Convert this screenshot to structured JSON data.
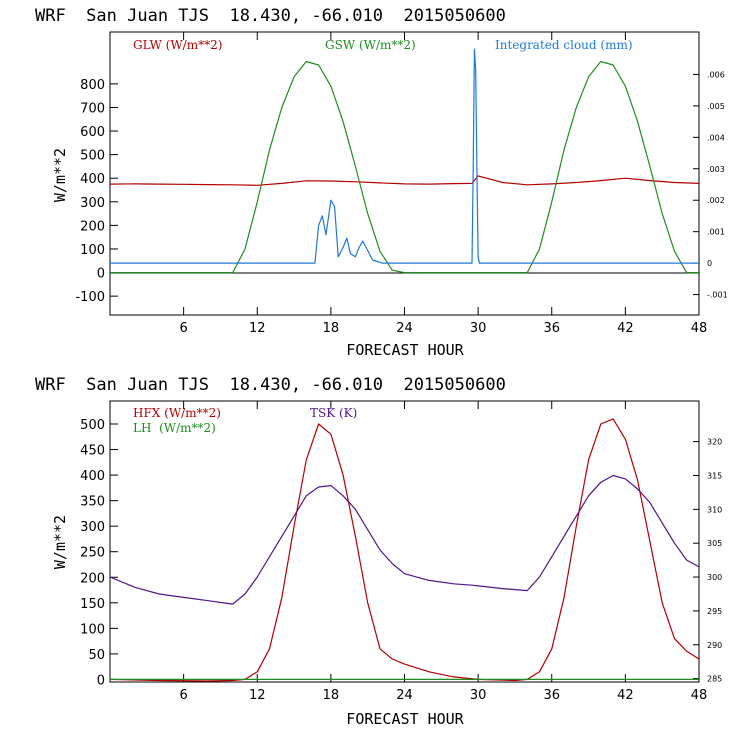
{
  "chart_data": [
    {
      "type": "line",
      "title": "WRF  San Juan TJS  18.430, -66.010  2015050600",
      "xlabel": "FORECAST HOUR",
      "ylabel": "W/m**2",
      "xlim": [
        0,
        48
      ],
      "ylim": [
        -180,
        1020
      ],
      "xticks": [
        "6",
        "12",
        "18",
        "24",
        "30",
        "36",
        "42",
        "48"
      ],
      "yticks": [
        "-100",
        "0",
        "100",
        "200",
        "300",
        "400",
        "500",
        "600",
        "700",
        "800"
      ],
      "y2lim": [
        -0.00165,
        0.00735
      ],
      "y2ticks": [
        "-.001",
        "0",
        ".001",
        ".002",
        ".003",
        ".004",
        ".005",
        ".006"
      ],
      "legend": [
        {
          "label": "GLW (W/m**2)",
          "color": "#b40000"
        },
        {
          "label": "GSW (W/m**2)",
          "color": "#1e8c1e"
        },
        {
          "label": "Integrated cloud (mm)",
          "color": "#1e78dc"
        }
      ],
      "series": [
        {
          "name": "GLW",
          "axis": "left",
          "color": "#b40000",
          "x": [
            0,
            2,
            4,
            6,
            8,
            10,
            12,
            14,
            16,
            18,
            20,
            22,
            24,
            26,
            28,
            29.5,
            30,
            32,
            34,
            36,
            38,
            40,
            42,
            44,
            46,
            48
          ],
          "y": [
            375,
            376,
            375,
            374,
            373,
            372,
            370,
            378,
            389,
            388,
            385,
            380,
            376,
            375,
            377,
            378,
            410,
            382,
            372,
            376,
            382,
            390,
            400,
            390,
            382,
            378
          ]
        },
        {
          "name": "GSW",
          "axis": "left",
          "color": "#1e8c1e",
          "x": [
            0,
            9,
            10,
            11,
            12,
            13,
            14,
            15,
            16,
            17,
            18,
            19,
            20,
            21,
            22,
            23,
            24,
            33,
            34,
            35,
            36,
            37,
            38,
            39,
            40,
            41,
            42,
            43,
            44,
            45,
            46,
            47,
            48
          ],
          "y": [
            0,
            0,
            0,
            100,
            300,
            520,
            700,
            830,
            895,
            880,
            790,
            640,
            450,
            250,
            90,
            10,
            0,
            0,
            0,
            100,
            300,
            520,
            700,
            830,
            895,
            880,
            790,
            640,
            450,
            250,
            90,
            0,
            0
          ]
        },
        {
          "name": "Integrated cloud",
          "axis": "right",
          "color": "#1e78dc",
          "x": [
            0,
            16.7,
            17,
            17.3,
            17.6,
            18,
            18.3,
            18.6,
            19,
            19.3,
            19.6,
            20,
            20.3,
            20.6,
            21,
            21.4,
            21.8,
            22.2,
            22.6,
            23,
            29.5,
            29.6,
            29.7,
            29.8,
            29.9,
            30,
            30.1,
            48
          ],
          "y": [
            0,
            0,
            0.0012,
            0.0015,
            0.0009,
            0.002,
            0.0018,
            0.0002,
            0.0005,
            0.0008,
            0.0003,
            0.0002,
            0.0005,
            0.0007,
            0.0004,
            0.0001,
            5e-05,
            0,
            0,
            0,
            0,
            0.003,
            0.0068,
            0.0061,
            0.003,
            0.0002,
            0,
            0
          ]
        }
      ]
    },
    {
      "type": "line",
      "title": "WRF  San Juan TJS  18.430, -66.010  2015050600",
      "xlabel": "FORECAST HOUR",
      "ylabel": "W/m**2",
      "xlim": [
        0,
        48
      ],
      "ylim": [
        -5,
        545
      ],
      "xticks": [
        "6",
        "12",
        "18",
        "24",
        "30",
        "36",
        "42",
        "48"
      ],
      "yticks": [
        "0",
        "50",
        "100",
        "150",
        "200",
        "250",
        "300",
        "350",
        "400",
        "450",
        "500"
      ],
      "y2lim": [
        284.5,
        326
      ],
      "y2ticks": [
        "285",
        "290",
        "295",
        "300",
        "305",
        "310",
        "315",
        "320"
      ],
      "legend": [
        {
          "label": "HFX (W/m**2)",
          "color": "#b40000"
        },
        {
          "label": "LH  (W/m**2)",
          "color": "#1e8c1e"
        },
        {
          "label": "TSK (K)",
          "color": "#50148c"
        }
      ],
      "series": [
        {
          "name": "HFX",
          "axis": "left",
          "color": "#b40000",
          "x": [
            0,
            4,
            8,
            10,
            11,
            12,
            13,
            14,
            15,
            16,
            17,
            18,
            19,
            20,
            21,
            22,
            23,
            24,
            26,
            28,
            30,
            33,
            34,
            35,
            36,
            37,
            38,
            39,
            40,
            41,
            42,
            43,
            44,
            45,
            46,
            47,
            48
          ],
          "y": [
            0,
            -2,
            -3,
            -2,
            0,
            15,
            60,
            160,
            300,
            430,
            500,
            480,
            400,
            280,
            150,
            60,
            40,
            30,
            15,
            5,
            0,
            -2,
            0,
            15,
            60,
            160,
            300,
            430,
            500,
            510,
            470,
            390,
            270,
            150,
            80,
            55,
            40
          ]
        },
        {
          "name": "LH",
          "axis": "left",
          "color": "#1e8c1e",
          "x": [
            0,
            48
          ],
          "y": [
            0,
            0
          ]
        },
        {
          "name": "TSK",
          "axis": "right",
          "color": "#50148c",
          "x": [
            0,
            2,
            4,
            6,
            8,
            10,
            11,
            12,
            13,
            14,
            15,
            16,
            17,
            18,
            19,
            20,
            21,
            22,
            23,
            24,
            26,
            28,
            29.5,
            30,
            32,
            34,
            35,
            36,
            37,
            38,
            39,
            40,
            41,
            42,
            43,
            44,
            45,
            46,
            47,
            48
          ],
          "y": [
            300,
            298.5,
            297.5,
            297,
            296.5,
            296,
            297.5,
            300,
            303,
            306,
            309,
            312,
            313.3,
            313.5,
            312,
            310,
            307,
            304,
            302,
            300.5,
            299.5,
            299,
            298.8,
            298.7,
            298.3,
            298,
            300,
            303,
            306,
            309,
            312,
            314,
            315,
            314.5,
            313,
            311,
            308,
            305,
            302.5,
            301.5
          ]
        }
      ]
    }
  ]
}
